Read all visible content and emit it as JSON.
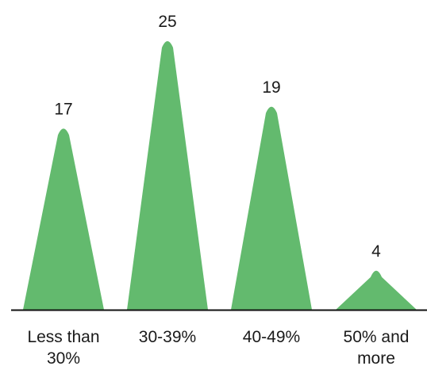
{
  "chart_data": {
    "type": "bar",
    "categories": [
      [
        "Less than",
        "30%"
      ],
      [
        "30-39%"
      ],
      [
        "40-49%"
      ],
      [
        "50% and",
        "more"
      ]
    ],
    "values": [
      17,
      25,
      19,
      4
    ],
    "data_labels": [
      "17",
      "25",
      "19",
      "4"
    ],
    "title": "",
    "xlabel": "",
    "ylabel": "",
    "ylim": [
      0,
      25
    ],
    "grid": false,
    "legend": "none",
    "mark_shape": "peak"
  },
  "colors": {
    "bar": "#63ba6e",
    "baseline": "#111111",
    "text": "#1a1a1a"
  }
}
